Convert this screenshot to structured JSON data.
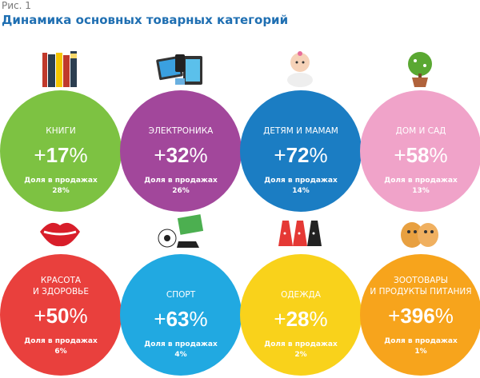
{
  "figure_label": "Рис. 1",
  "title": "Динамика основных товарных категорий",
  "share_label": "Доля в продажах",
  "categories": [
    {
      "name": "КНИГИ",
      "growth": "17",
      "share": "28%",
      "color": "#7dc242",
      "icon": "books-icon"
    },
    {
      "name": "ЭЛЕКТРОНИКА",
      "growth": "32",
      "share": "26%",
      "color": "#a2479b",
      "icon": "tablets-icon"
    },
    {
      "name": "ДЕТЯМ И МАМАМ",
      "growth": "72",
      "share": "14%",
      "color": "#1b7dc3",
      "icon": "baby-icon"
    },
    {
      "name": "ДОМ И САД",
      "growth": "58",
      "share": "13%",
      "color": "#f0a3c9",
      "icon": "plant-icon"
    },
    {
      "name": "КРАСОТА\nИ ЗДОРОВЬЕ",
      "growth": "50",
      "share": "6%",
      "color": "#e9403d",
      "icon": "lips-icon"
    },
    {
      "name": "СПОРТ",
      "growth": "63",
      "share": "4%",
      "color": "#21a9e1",
      "icon": "soccer-icon"
    },
    {
      "name": "ОДЕЖДА",
      "growth": "28",
      "share": "2%",
      "color": "#f9d21b",
      "icon": "dresses-icon"
    },
    {
      "name": "ЗООТОВАРЫ\nИ ПРОДУКТЫ ПИТАНИЯ",
      "growth": "396",
      "share": "1%",
      "color": "#f7a41c",
      "icon": "pets-icon"
    }
  ],
  "sign": "+",
  "unit": "%"
}
